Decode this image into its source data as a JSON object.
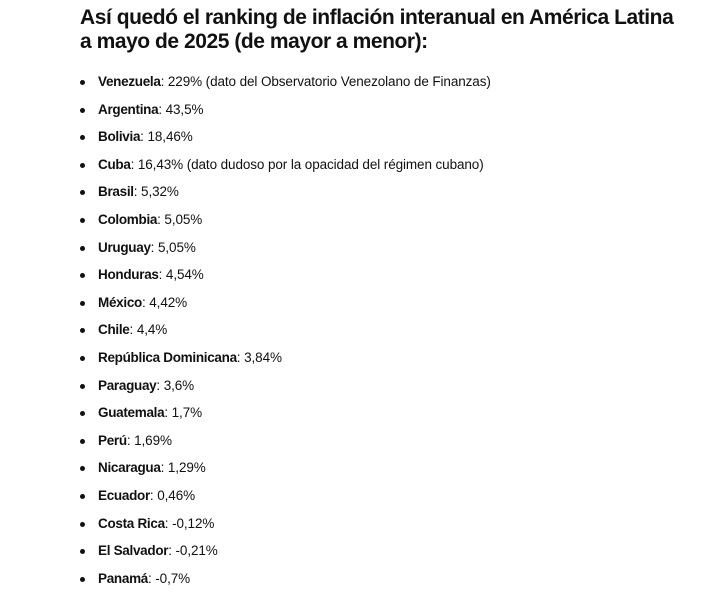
{
  "article": {
    "headline": "Así quedó el ranking de inflación interanual en América Latina a mayo de 2025 (de mayor a menor):",
    "ranking": [
      {
        "country": "Venezuela",
        "value": ": 229% (dato del Observatorio Venezolano de Finanzas)"
      },
      {
        "country": "Argentina",
        "value": ": 43,5%"
      },
      {
        "country": "Bolivia",
        "value": ": 18,46%"
      },
      {
        "country": "Cuba",
        "value": ": 16,43% (dato dudoso por la opacidad del régimen cubano)"
      },
      {
        "country": "Brasil",
        "value": ": 5,32%"
      },
      {
        "country": "Colombia",
        "value": ": 5,05%"
      },
      {
        "country": "Uruguay",
        "value": ": 5,05%"
      },
      {
        "country": "Honduras",
        "value": ": 4,54%"
      },
      {
        "country": "México",
        "value": ": 4,42%"
      },
      {
        "country": "Chile",
        "value": ": 4,4%"
      },
      {
        "country": "República Dominicana",
        "value": ": 3,84%"
      },
      {
        "country": "Paraguay",
        "value": ": 3,6%"
      },
      {
        "country": "Guatemala",
        "value": ": 1,7%"
      },
      {
        "country": "Perú",
        "value": ": 1,69%"
      },
      {
        "country": "Nicaragua",
        "value": ": 1,29%"
      },
      {
        "country": "Ecuador",
        "value": ": 0,46%"
      },
      {
        "country": "Costa Rica",
        "value": ": -0,12%"
      },
      {
        "country": "El Salvador",
        "value": ": -0,21%"
      },
      {
        "country": "Panamá",
        "value": ": -0,7%"
      }
    ]
  },
  "colors": {
    "text": "#111111",
    "background": "#ffffff"
  },
  "icons": {
    "bullet": "bullet-dot-icon"
  }
}
